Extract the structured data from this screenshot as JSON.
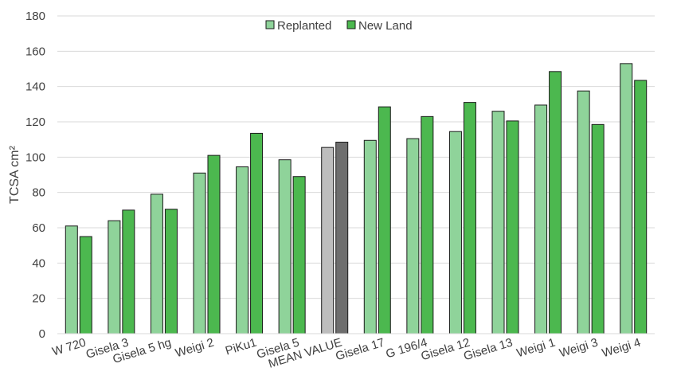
{
  "chart_data": {
    "type": "bar",
    "title": "",
    "xlabel": "",
    "ylabel": "TCSA cm²",
    "ylim": [
      0,
      180
    ],
    "yticks": [
      0,
      20,
      40,
      60,
      80,
      100,
      120,
      140,
      160,
      180
    ],
    "grid": true,
    "legend_position": "top-center",
    "categories": [
      "W 720",
      "Gisela 3",
      "Gisela 5 hg",
      "Weigi 2",
      "PiKu1",
      "Gisela 5",
      "MEAN VALUE",
      "Gisela 17",
      "G 196/4",
      "Gisela 12",
      "Gisela 13",
      "Weigi 1",
      "Weigi 3",
      "Weigi 4"
    ],
    "series": [
      {
        "name": "Replanted",
        "color": "#8fd39a",
        "values": [
          61,
          64,
          79,
          91,
          94.5,
          98.5,
          105.5,
          109.5,
          110.5,
          114.5,
          126,
          129.5,
          137.5,
          153
        ]
      },
      {
        "name": "New Land",
        "color": "#4cb84f",
        "values": [
          55,
          70,
          70.5,
          101,
          113.5,
          89,
          108.5,
          128.5,
          123,
          131,
          120.5,
          148.5,
          118.5,
          143.5
        ]
      }
    ],
    "highlight": {
      "category": "MEAN VALUE",
      "colors": [
        "#bdbdbd",
        "#6e6e6e"
      ]
    }
  }
}
